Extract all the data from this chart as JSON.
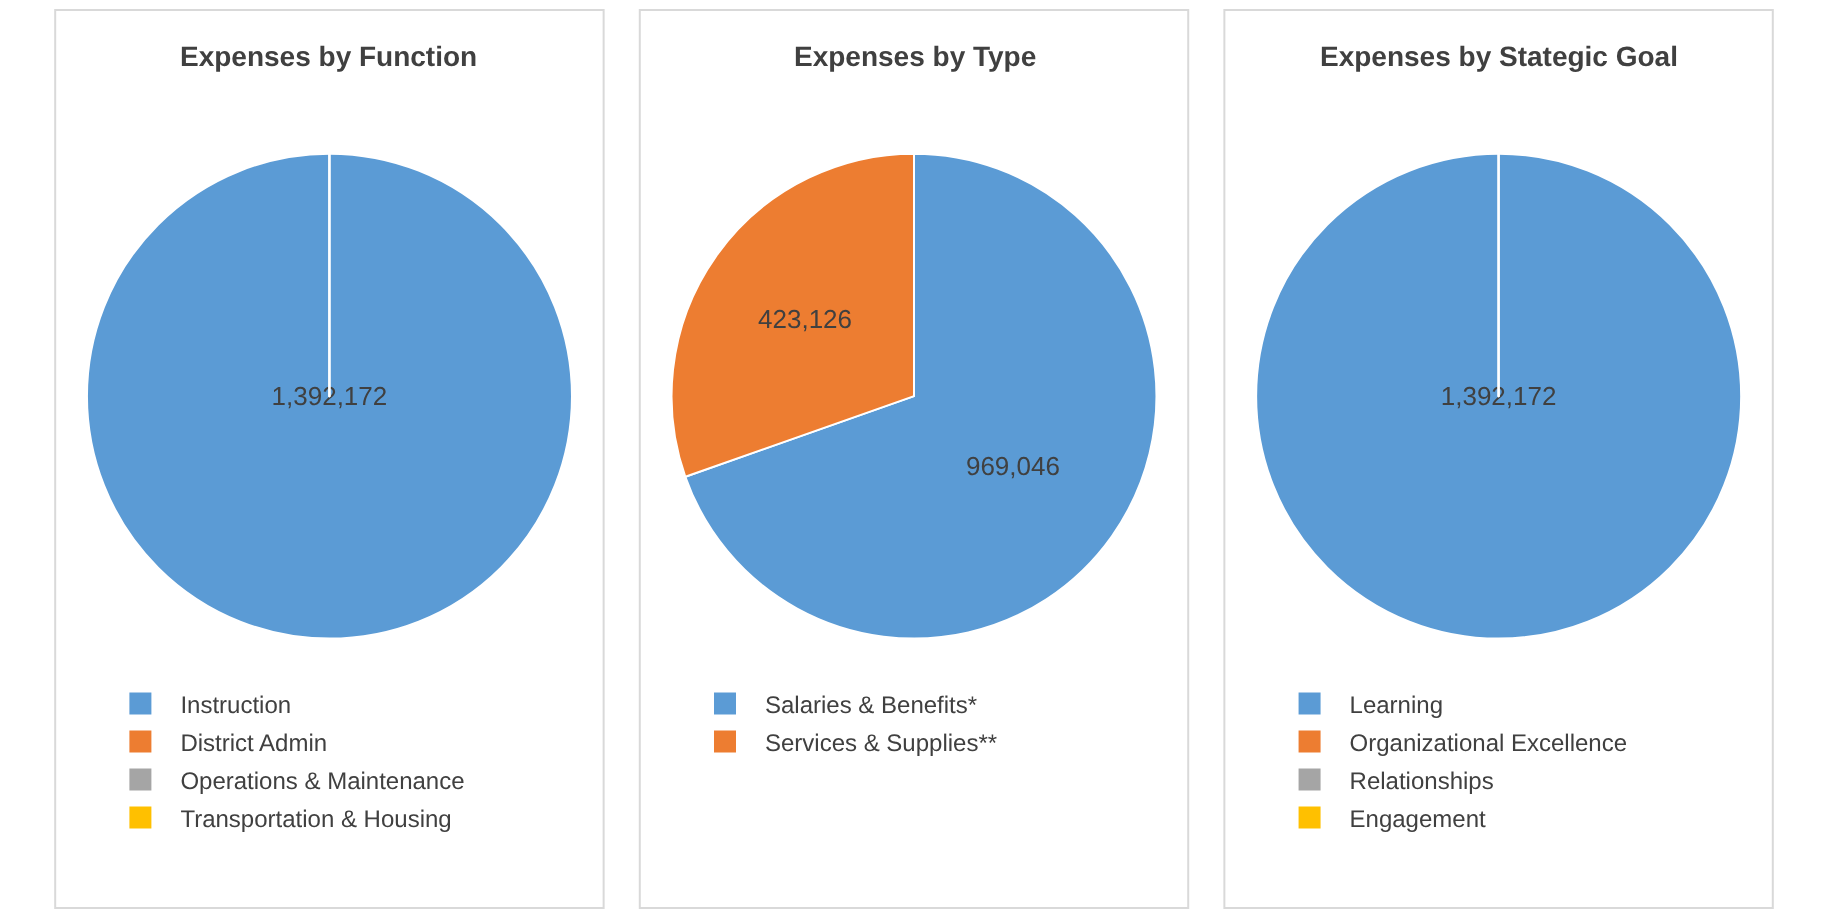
{
  "chart_data": [
    {
      "type": "pie",
      "title": "Expenses by Function",
      "categories": [
        "Instruction",
        "District Admin",
        "Operations & Maintenance",
        "Transportation & Housing"
      ],
      "values": [
        1392172,
        0,
        0,
        0
      ],
      "colors": [
        "#5b9bd5",
        "#ed7d31",
        "#a5a5a5",
        "#ffc000"
      ],
      "value_labels": [
        "1,392,172",
        null,
        null,
        null
      ],
      "legend": "bottom"
    },
    {
      "type": "pie",
      "title": "Expenses by Type",
      "categories": [
        "Salaries & Benefits*",
        "Services & Supplies**"
      ],
      "values": [
        969046,
        423126
      ],
      "colors": [
        "#5b9bd5",
        "#ed7d31"
      ],
      "value_labels": [
        "969,046",
        "423,126"
      ],
      "legend": "bottom"
    },
    {
      "type": "pie",
      "title": "Expenses by Stategic Goal",
      "categories": [
        "Learning",
        "Organizational Excellence",
        "Relationships",
        "Engagement"
      ],
      "values": [
        1392172,
        0,
        0,
        0
      ],
      "colors": [
        "#5b9bd5",
        "#ed7d31",
        "#a5a5a5",
        "#ffc000"
      ],
      "value_labels": [
        "1,392,172",
        null,
        null,
        null
      ],
      "legend": "bottom"
    }
  ]
}
